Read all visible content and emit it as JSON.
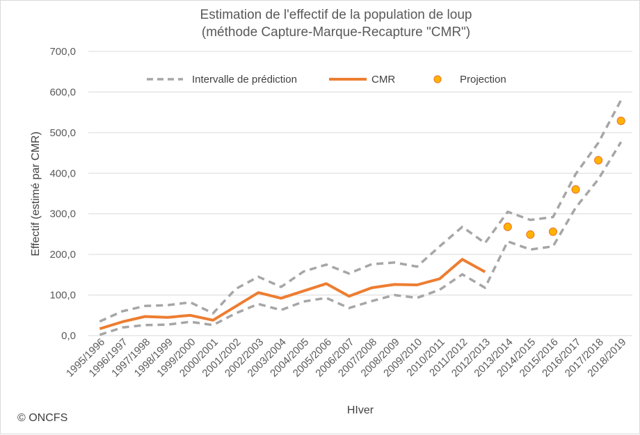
{
  "chart_data": {
    "type": "line",
    "title": "Estimation de l'effectif de la population de loup",
    "subtitle": "(méthode Capture-Marque-Recapture \"CMR\")",
    "xlabel": "HIver",
    "ylabel": "Effectif  (estimé par CMR)",
    "ylim": [
      0,
      700
    ],
    "yticks": [
      "0,0",
      "100,0",
      "200,0",
      "300,0",
      "400,0",
      "500,0",
      "600,0",
      "700,0"
    ],
    "ytick_values": [
      0,
      100,
      200,
      300,
      400,
      500,
      600,
      700
    ],
    "grid": true,
    "legend_position": "top",
    "categories": [
      "1995/1996",
      "1996/1997",
      "1997/1998",
      "1998/1999",
      "1999/2000",
      "2000/2001",
      "2001/2002",
      "2002/2003",
      "2003/2004",
      "2004/2005",
      "2005/2006",
      "2006/2007",
      "2007/2008",
      "2008/2009",
      "2009/2010",
      "2010/2011",
      "2011/2012",
      "2012/2013",
      "2013/2014",
      "2014/2015",
      "2015/2016",
      "2016/2017",
      "2017/2018",
      "2018/2019"
    ],
    "series": [
      {
        "name": "Intervalle de prédiction",
        "style": "dashed",
        "color": "#a6a6a6",
        "upper": [
          35,
          60,
          73,
          75,
          82,
          55,
          115,
          145,
          120,
          158,
          175,
          153,
          176,
          180,
          170,
          220,
          268,
          228,
          305,
          285,
          292,
          398,
          475,
          580
        ],
        "lower": [
          2,
          20,
          26,
          27,
          34,
          26,
          55,
          78,
          63,
          84,
          93,
          68,
          85,
          100,
          93,
          113,
          151,
          118,
          232,
          212,
          220,
          315,
          385,
          477
        ]
      },
      {
        "name": "CMR",
        "style": "solid",
        "color": "#ed7d31",
        "values": [
          17,
          34,
          47,
          45,
          50,
          38,
          72,
          106,
          92,
          110,
          128,
          97,
          118,
          126,
          125,
          140,
          188,
          157,
          null,
          null,
          null,
          null,
          null,
          null
        ]
      },
      {
        "name": "Projection",
        "style": "marker",
        "color": "#ffb300",
        "values": [
          null,
          null,
          null,
          null,
          null,
          null,
          null,
          null,
          null,
          null,
          null,
          null,
          null,
          null,
          null,
          null,
          null,
          null,
          268,
          249,
          256,
          360,
          432,
          529
        ]
      }
    ]
  },
  "copyright": "© ONCFS"
}
